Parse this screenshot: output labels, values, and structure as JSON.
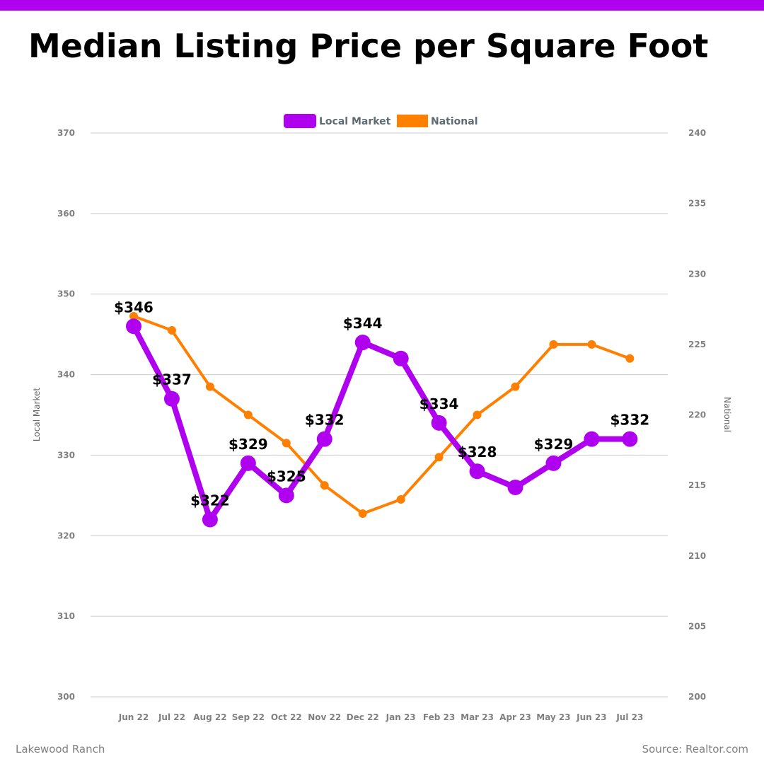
{
  "header": {
    "title": "Median Listing Price per Square Foot",
    "accent_color": "#b000f0"
  },
  "footer": {
    "location": "Lakewood Ranch",
    "source": "Source: Realtor.com"
  },
  "chart_data": {
    "type": "line",
    "title": "Median Listing Price per Square Foot",
    "categories": [
      "Jun 22",
      "Jul 22",
      "Aug 22",
      "Sep 22",
      "Oct 22",
      "Nov 22",
      "Dec 22",
      "Jan 23",
      "Feb 23",
      "Mar 23",
      "Apr 23",
      "May 23",
      "Jun 23",
      "Jul 23"
    ],
    "series": [
      {
        "name": "Local Market",
        "axis": "left",
        "color": "#b000f0",
        "values": [
          346,
          337,
          322,
          329,
          325,
          332,
          344,
          342,
          334,
          328,
          326,
          329,
          332,
          332
        ],
        "data_labels": [
          "$346",
          "$337",
          "$322",
          "$329",
          "$325",
          "$332",
          "$344",
          "",
          "$334",
          "$328",
          "",
          "$329",
          "",
          "$332"
        ]
      },
      {
        "name": "National",
        "axis": "right",
        "color": "#ff8000",
        "values": [
          227,
          226,
          222,
          220,
          218,
          215,
          213,
          214,
          217,
          220,
          222,
          225,
          225,
          224
        ]
      }
    ],
    "ylabel": "Local Market",
    "y2label": "National",
    "xlabel": "",
    "ylim": [
      300,
      370
    ],
    "y2lim": [
      200,
      240
    ],
    "yticks": [
      300,
      310,
      320,
      330,
      340,
      350,
      360,
      370
    ],
    "y2ticks": [
      200,
      205,
      210,
      215,
      220,
      225,
      230,
      235,
      240
    ],
    "grid": true,
    "legend": "top-center"
  }
}
